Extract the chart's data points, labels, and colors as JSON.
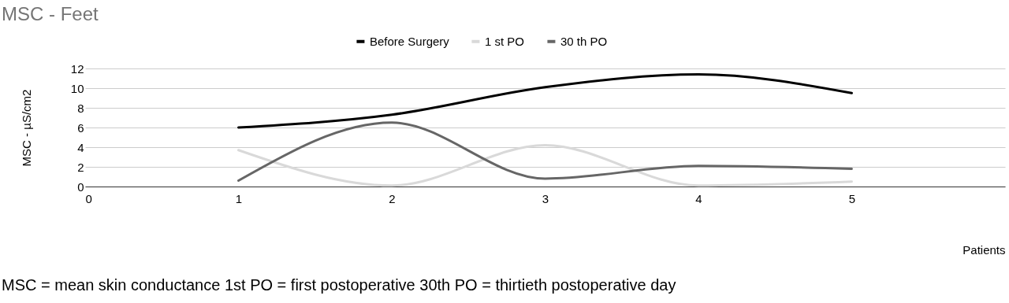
{
  "chart_data": {
    "type": "line",
    "title": "MSC - Feet",
    "xlabel": "Patients",
    "ylabel": "MSC - µS/cm2",
    "x": [
      1,
      2,
      3,
      4,
      5
    ],
    "series": [
      {
        "name": "Before Surgery",
        "color": "#000000",
        "values": [
          6.0,
          7.3,
          10.1,
          11.4,
          9.5
        ]
      },
      {
        "name": "1 st PO",
        "color": "#d9d9d9",
        "values": [
          3.7,
          0.1,
          4.2,
          0.1,
          0.5
        ]
      },
      {
        "name": "30 th PO",
        "color": "#666666",
        "values": [
          0.6,
          6.5,
          0.8,
          2.1,
          1.8
        ]
      }
    ],
    "xlim": [
      0,
      6
    ],
    "xticks": [
      0,
      1,
      2,
      3,
      4,
      5
    ],
    "ylim": [
      0,
      12
    ],
    "yticks": [
      0,
      2,
      4,
      6,
      8,
      10,
      12
    ],
    "grid": "y",
    "legend": "top",
    "marker": "none",
    "line_style": "solid",
    "annotations": [
      "MSC = mean skin conductance 1st PO = first postoperative 30th PO = thirtieth postoperative day"
    ]
  }
}
